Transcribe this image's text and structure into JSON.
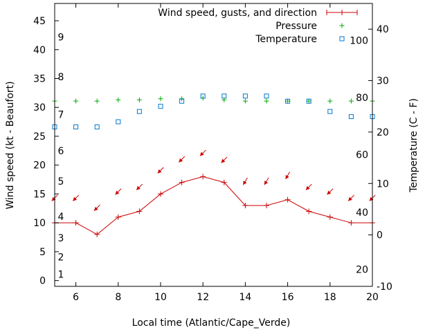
{
  "chart_data": {
    "type": "line",
    "xlabel": "Local time (Atlantic/Cape_Verde)",
    "ylabel": "Wind speed (kt - Beaufort)",
    "y2label": "Temperature (C - F)",
    "xlim": [
      5,
      20
    ],
    "ylim": [
      -1,
      48
    ],
    "y2lim": [
      -10,
      45
    ],
    "xticks": [
      6,
      8,
      10,
      12,
      14,
      16,
      18,
      20
    ],
    "yticks": [
      0,
      5,
      10,
      15,
      20,
      25,
      30,
      35,
      40,
      45
    ],
    "y2ticks": [
      -10,
      0,
      10,
      20,
      30,
      40
    ],
    "beaufort_labels": [
      {
        "text": "1",
        "y": 1.1
      },
      {
        "text": "2",
        "y": 4.1
      },
      {
        "text": "3",
        "y": 7.4
      },
      {
        "text": "4",
        "y": 11.1
      },
      {
        "text": "5",
        "y": 17.2
      },
      {
        "text": "6",
        "y": 22.5
      },
      {
        "text": "7",
        "y": 28.8
      },
      {
        "text": "8",
        "y": 35.3
      },
      {
        "text": "9",
        "y": 42.2
      }
    ],
    "fahrenheit_labels": [
      {
        "text": "20",
        "y2": -6.7
      },
      {
        "text": "40",
        "y2": 4.4
      },
      {
        "text": "60",
        "y2": 15.6
      },
      {
        "text": "80",
        "y2": 26.7
      },
      {
        "text": "100",
        "y2": 37.8
      }
    ],
    "legend": {
      "placement": "top-right",
      "entries": [
        {
          "label": "Wind speed, gusts, and direction",
          "marker": "line-plus",
          "color": "#cc0000"
        },
        {
          "label": "Pressure",
          "marker": "plus",
          "color": "#00aa00"
        },
        {
          "label": "Temperature",
          "marker": "square",
          "color": "#0077cc"
        }
      ]
    },
    "series": [
      {
        "name": "Wind speed, gusts, and direction",
        "axis": "y",
        "color": "#cc0000",
        "x": [
          5,
          6,
          7,
          8,
          9,
          10,
          11,
          12,
          13,
          14,
          15,
          16,
          17,
          18,
          19,
          20
        ],
        "values": [
          10,
          10,
          8,
          11,
          12,
          15,
          17,
          18,
          17,
          13,
          13,
          14,
          12,
          11,
          10,
          10
        ]
      },
      {
        "name": "Pressure",
        "axis": "y",
        "color": "#00aa00",
        "x": [
          5,
          6,
          7,
          8,
          9,
          10,
          11,
          12,
          13,
          14,
          15,
          16,
          17,
          18,
          19,
          20
        ],
        "values": [
          31.1,
          31.1,
          31.1,
          31.3,
          31.3,
          31.5,
          31.5,
          31.6,
          31.3,
          31.1,
          31.1,
          31.1,
          31.1,
          31.1,
          31.1,
          31.1
        ]
      },
      {
        "name": "Temperature",
        "axis": "y2",
        "color": "#0077cc",
        "x": [
          5,
          6,
          7,
          8,
          9,
          10,
          11,
          12,
          13,
          14,
          15,
          16,
          17,
          18,
          19,
          20
        ],
        "values": [
          21,
          21,
          21,
          22,
          24,
          25,
          26,
          27,
          27,
          27,
          27,
          26,
          26,
          24,
          23,
          23
        ]
      }
    ],
    "wind_direction_arrows": {
      "color": "#cc0000",
      "x": [
        5,
        6,
        7,
        8,
        9,
        10,
        11,
        12,
        13,
        14,
        15,
        16,
        17,
        18,
        19,
        20
      ],
      "y": [
        14.3,
        14.3,
        12.6,
        15.4,
        16.2,
        19.1,
        21.0,
        22.1,
        20.9,
        17.2,
        17.2,
        18.2,
        16.2,
        15.4,
        14.3,
        14.3
      ],
      "direction_deg": [
        45,
        45,
        45,
        45,
        45,
        45,
        45,
        45,
        45,
        60,
        60,
        60,
        45,
        45,
        45,
        45
      ]
    }
  }
}
